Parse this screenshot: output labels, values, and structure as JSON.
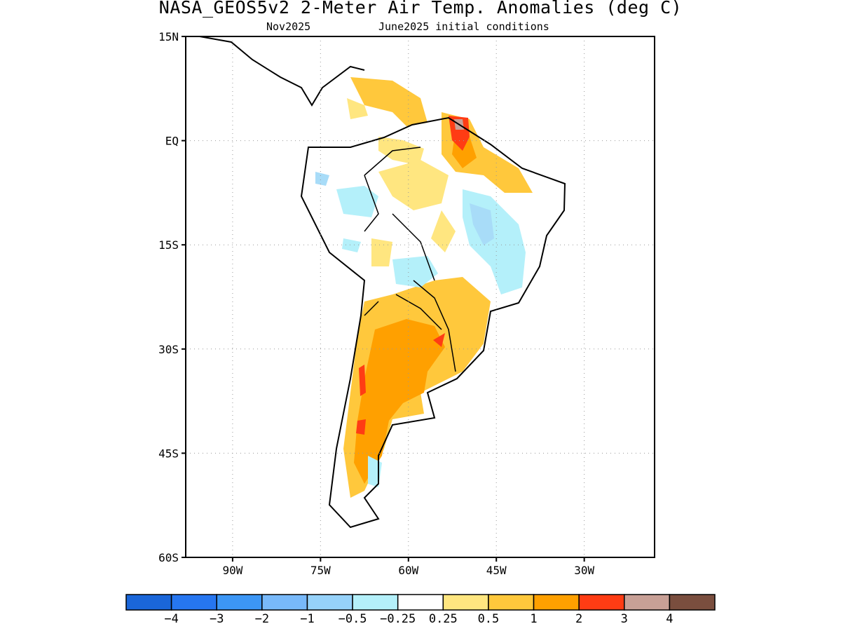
{
  "title": "NASA_GEOS5v2 2-Meter Air Temp. Anomalies (deg C)",
  "subtitle_left": "Nov2025",
  "subtitle_right": "June2025 initial conditions",
  "map": {
    "lon_range": [
      -98,
      -18
    ],
    "lat_range": [
      -60,
      15
    ],
    "lat_ticks": [
      {
        "value": 15,
        "label": "15N"
      },
      {
        "value": 0,
        "label": "EQ"
      },
      {
        "value": -15,
        "label": "15S"
      },
      {
        "value": -30,
        "label": "30S"
      },
      {
        "value": -45,
        "label": "45S"
      },
      {
        "value": -60,
        "label": "60S"
      }
    ],
    "lon_ticks": [
      {
        "value": -90,
        "label": "90W"
      },
      {
        "value": -75,
        "label": "75W"
      },
      {
        "value": -60,
        "label": "60W"
      },
      {
        "value": -45,
        "label": "45W"
      },
      {
        "value": -30,
        "label": "30W"
      }
    ],
    "grid": true,
    "region": "South America",
    "anomaly_regions": [
      {
        "level": "0.25 to 0.5",
        "color": "#ffe680",
        "approx_area": "northern Venezuela / Guianas"
      },
      {
        "level": "1 to 2",
        "color": "#ffa500",
        "approx_area": "Argentina east of the Andes and Patagonia"
      },
      {
        "level": "2 to 3",
        "color": "#ff3b1a",
        "approx_area": "Andes near 30S–42S and French Guiana"
      },
      {
        "level": "3 to 4",
        "color": "#c8a096",
        "approx_area": "French Guiana"
      },
      {
        "level": "-0.5 to -0.25",
        "color": "#b0f0f8",
        "approx_area": "eastern Brazil and Bolivia"
      },
      {
        "level": "-1 to -0.5",
        "color": "#a8dcf8",
        "approx_area": "central Brazil"
      }
    ]
  },
  "colorbar": {
    "colors": [
      "#1a66d9",
      "#2676f0",
      "#3c96f5",
      "#78b9fa",
      "#96d2fa",
      "#b4f0fa",
      "#ffffff",
      "#ffe680",
      "#ffc83c",
      "#ffa000",
      "#ff3c14",
      "#c8a096",
      "#7a4e3e"
    ],
    "labels": [
      "-4",
      "-3",
      "-2",
      "-1",
      "-0.5",
      "-0.25",
      "0.25",
      "0.5",
      "1",
      "2",
      "3",
      "4"
    ]
  }
}
